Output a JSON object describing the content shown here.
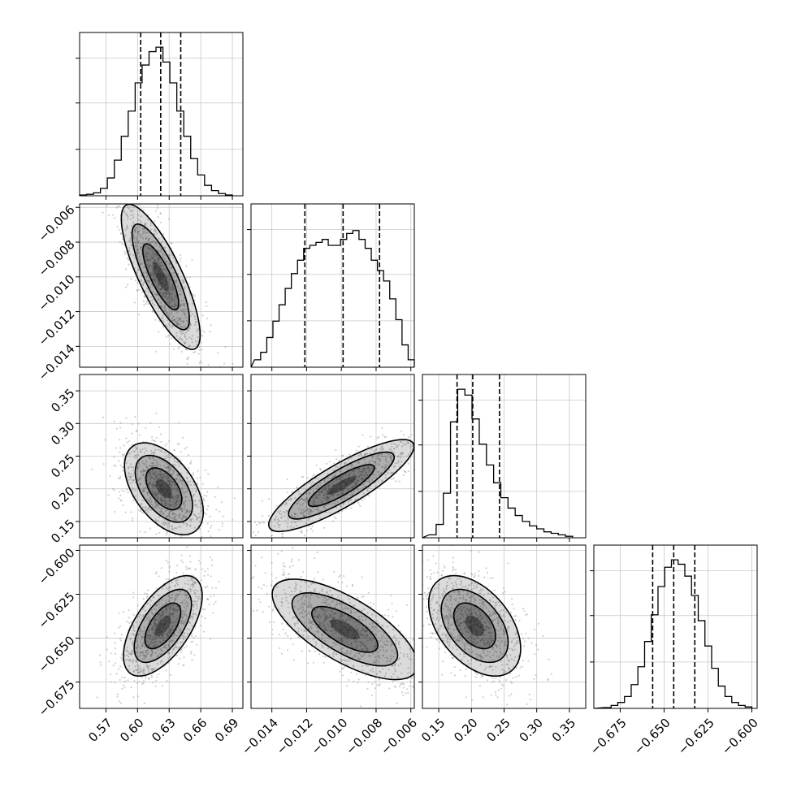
{
  "chart_data": {
    "type": "corner",
    "grid": true,
    "colors": {
      "ink": "#000000",
      "scatter": "#9a9a9a",
      "grid": "#c8c8c8",
      "background": "#ffffff"
    },
    "parameters": [
      {
        "range": [
          0.545,
          0.7
        ],
        "ticks": [
          0.57,
          0.6,
          0.63,
          0.66,
          0.69
        ],
        "tick_labels": [
          "0.57",
          "0.60",
          "0.63",
          "0.66",
          "0.69"
        ]
      },
      {
        "range": [
          -0.0152,
          -0.0058
        ],
        "ticks": [
          -0.014,
          -0.012,
          -0.01,
          -0.008,
          -0.006
        ],
        "tick_labels": [
          "−0.014",
          "−0.012",
          "−0.010",
          "−0.008",
          "−0.006"
        ]
      },
      {
        "range": [
          0.125,
          0.375
        ],
        "ticks": [
          0.15,
          0.2,
          0.25,
          0.3,
          0.35
        ],
        "tick_labels": [
          "0.15",
          "0.20",
          "0.25",
          "0.30",
          "0.35"
        ]
      },
      {
        "range": [
          -0.69,
          -0.597
        ],
        "ticks": [
          -0.675,
          -0.65,
          -0.625,
          -0.6
        ],
        "tick_labels": [
          "−0.675",
          "−0.650",
          "−0.625",
          "−0.600"
        ]
      }
    ],
    "marginals": [
      {
        "counts": [
          0.005,
          0.01,
          0.02,
          0.05,
          0.12,
          0.24,
          0.4,
          0.57,
          0.76,
          0.88,
          0.97,
          1.0,
          0.9,
          0.76,
          0.57,
          0.4,
          0.25,
          0.14,
          0.07,
          0.035,
          0.015,
          0.005
        ],
        "bins_range": [
          0.545,
          0.69
        ],
        "quantiles": [
          0.603,
          0.622,
          0.641
        ]
      },
      {
        "counts": [
          0.05,
          0.1,
          0.2,
          0.31,
          0.42,
          0.53,
          0.63,
          0.72,
          0.8,
          0.82,
          0.84,
          0.86,
          0.82,
          0.82,
          0.86,
          0.9,
          0.92,
          0.86,
          0.8,
          0.72,
          0.65,
          0.58,
          0.46,
          0.32,
          0.15,
          0.05
        ],
        "bins_range": [
          -0.015,
          -0.0058
        ],
        "quantiles": [
          -0.0121,
          -0.0099,
          -0.0078
        ]
      },
      {
        "counts": [
          0.02,
          0.09,
          0.3,
          0.78,
          1.0,
          0.96,
          0.8,
          0.63,
          0.49,
          0.37,
          0.27,
          0.2,
          0.15,
          0.11,
          0.08,
          0.06,
          0.04,
          0.03,
          0.02,
          0.01
        ],
        "bins_range": [
          0.135,
          0.355
        ],
        "quantiles": [
          0.178,
          0.202,
          0.243
        ]
      },
      {
        "counts": [
          0.005,
          0.02,
          0.04,
          0.08,
          0.16,
          0.28,
          0.45,
          0.63,
          0.82,
          0.95,
          1.0,
          0.97,
          0.89,
          0.76,
          0.59,
          0.42,
          0.27,
          0.15,
          0.08,
          0.04,
          0.02,
          0.01
        ],
        "bins_range": [
          -0.684,
          -0.6
        ],
        "quantiles": [
          -0.6565,
          -0.6445,
          -0.6325
        ]
      }
    ],
    "pairs": [
      {
        "row": 1,
        "col": 0,
        "mean": [
          0.622,
          -0.01
        ],
        "sd": [
          0.017,
          0.0019
        ],
        "rho": -0.8
      },
      {
        "row": 2,
        "col": 0,
        "mean": [
          0.625,
          0.2
        ],
        "sd": [
          0.017,
          0.032
        ],
        "rho": -0.5
      },
      {
        "row": 2,
        "col": 1,
        "mean": [
          -0.01,
          0.205
        ],
        "sd": [
          0.0019,
          0.032
        ],
        "rho": 0.85
      },
      {
        "row": 3,
        "col": 0,
        "mean": [
          0.624,
          -0.643
        ],
        "sd": [
          0.017,
          0.013
        ],
        "rho": 0.6
      },
      {
        "row": 3,
        "col": 1,
        "mean": [
          -0.0098,
          -0.645
        ],
        "sd": [
          0.0019,
          0.013
        ],
        "rho": -0.7
      },
      {
        "row": 3,
        "col": 2,
        "mean": [
          0.205,
          -0.643
        ],
        "sd": [
          0.032,
          0.013
        ],
        "rho": -0.45
      }
    ]
  }
}
